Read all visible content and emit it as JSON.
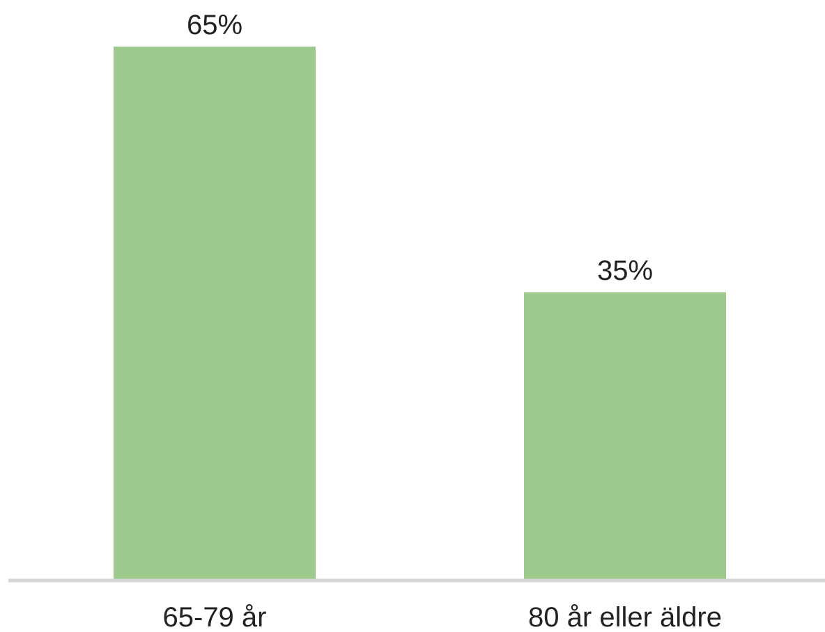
{
  "chart_data": {
    "type": "bar",
    "categories": [
      "65-79 år",
      "80 år eller äldre"
    ],
    "values": [
      65,
      35
    ],
    "value_labels": [
      "65%",
      "35%"
    ],
    "title": "",
    "xlabel": "",
    "ylabel": "",
    "unit": "%",
    "ylim": [
      0,
      65
    ],
    "grid": false,
    "legend": "none",
    "colors": {
      "bar": "#9fca8e",
      "axis": "#d6d6d6",
      "text": "#222222"
    }
  }
}
